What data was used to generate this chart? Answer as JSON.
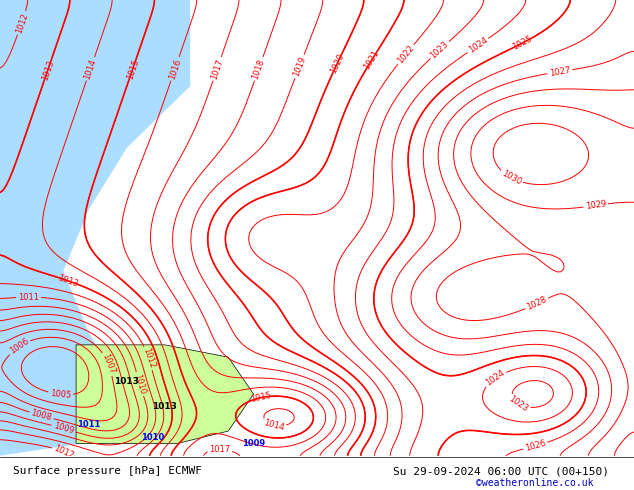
{
  "title_left": "Surface pressure [hPa] ECMWF",
  "title_right": "Su 29-09-2024 06:00 UTC (00+150)",
  "watermark": "©weatheronline.co.uk",
  "bg_color": "#ccff99",
  "land_color": "#ccff99",
  "water_color": "#aaddff",
  "contour_color_red": "#ff0000",
  "contour_color_black": "#000000",
  "contour_color_blue": "#0000ff",
  "contour_color_gray": "#888888",
  "label_fontsize": 7,
  "title_fontsize": 8,
  "pressure_min": 1005,
  "pressure_max": 1030,
  "pressure_step": 1
}
